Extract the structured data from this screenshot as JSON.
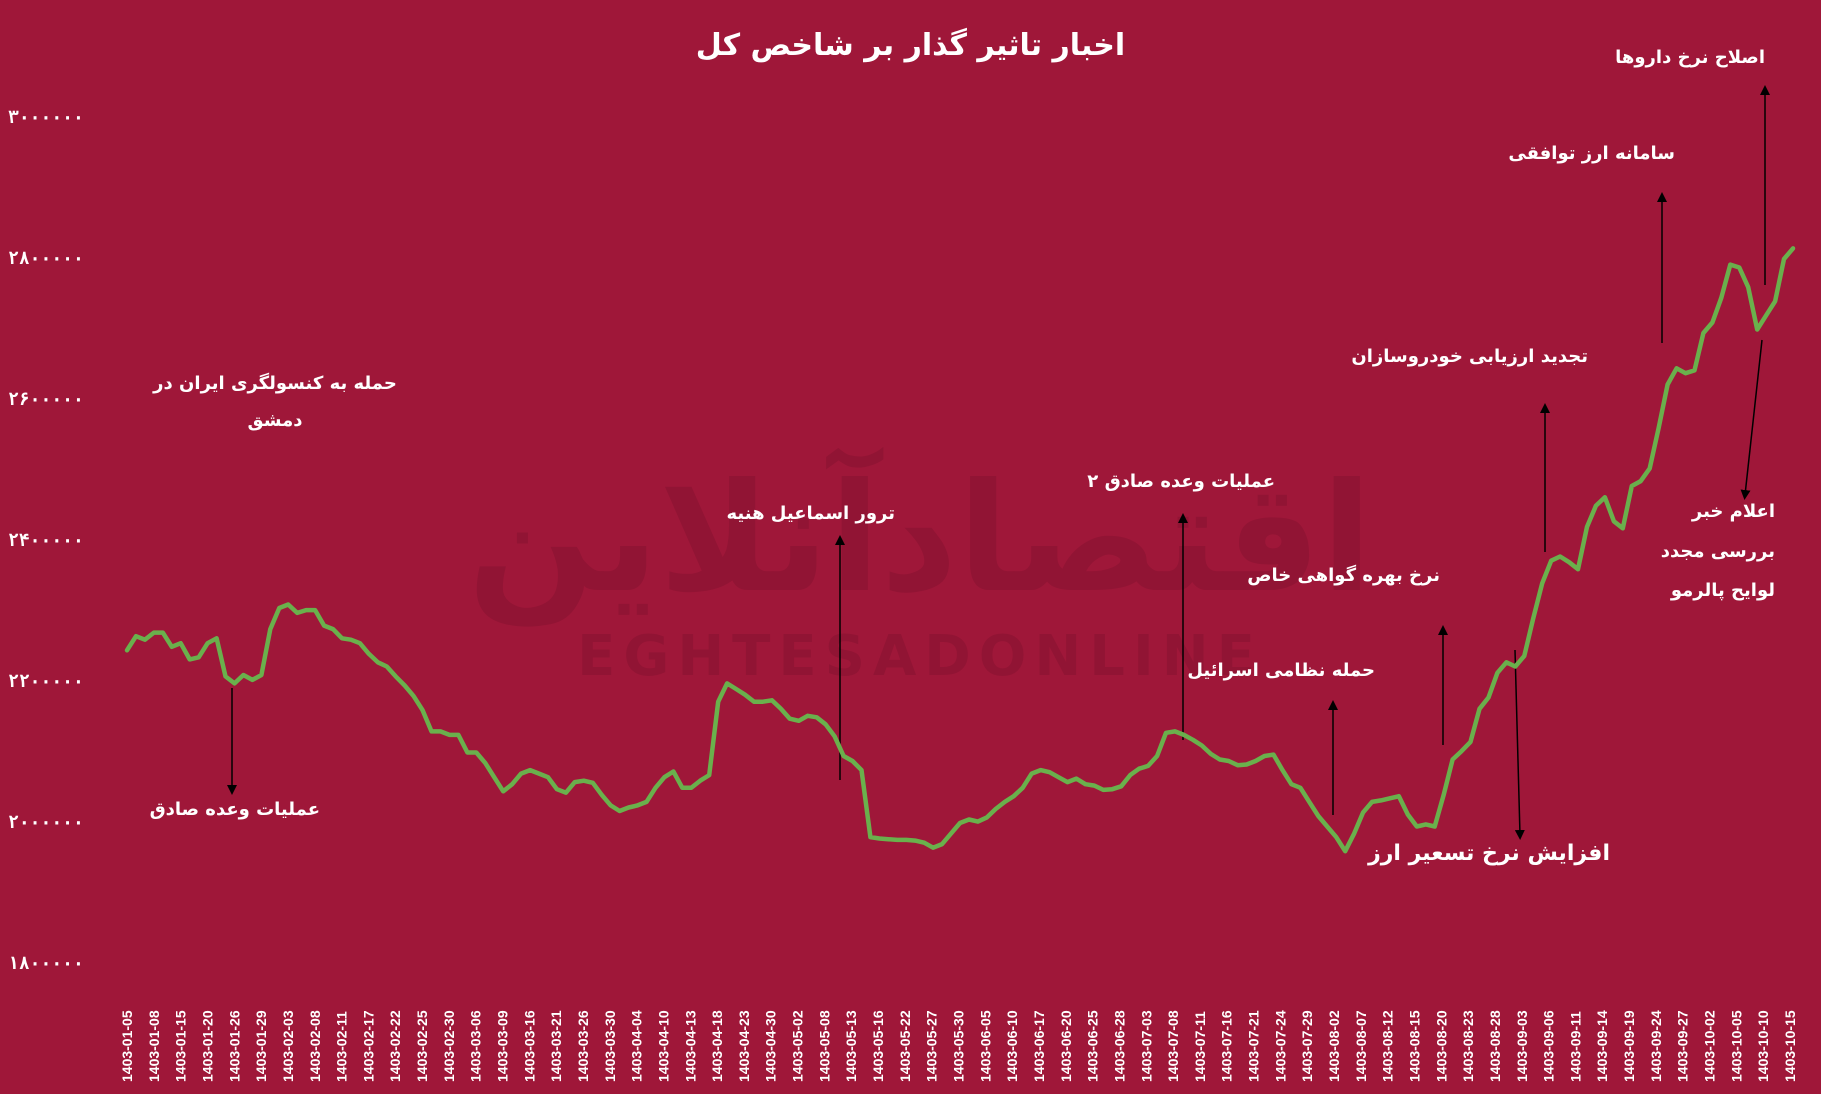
{
  "chart_data": {
    "type": "line",
    "title": "اخبار تاثیر گذار بر شاخص کل",
    "xlabel": "",
    "ylabel": "",
    "ylim": [
      1800000,
      3000000
    ],
    "ytick_labels": [
      "۳۰۰۰۰۰۰",
      "۲۸۰۰۰۰۰",
      "۲۶۰۰۰۰۰",
      "۲۴۰۰۰۰۰",
      "۲۲۰۰۰۰۰",
      "۲۰۰۰۰۰۰",
      "۱۸۰۰۰۰۰"
    ],
    "ytick_values": [
      3000000,
      2800000,
      2600000,
      2400000,
      2200000,
      2000000,
      1800000
    ],
    "x_tick_labels": [
      "1403-01-05",
      "1403-01-08",
      "1403-01-15",
      "1403-01-20",
      "1403-01-26",
      "1403-01-29",
      "1403-02-03",
      "1403-02-08",
      "1403-02-11",
      "1403-02-17",
      "1403-02-22",
      "1403-02-25",
      "1403-02-30",
      "1403-03-06",
      "1403-03-09",
      "1403-03-16",
      "1403-03-21",
      "1403-03-26",
      "1403-03-30",
      "1403-04-04",
      "1403-04-10",
      "1403-04-13",
      "1403-04-18",
      "1403-04-23",
      "1403-04-30",
      "1403-05-02",
      "1403-05-08",
      "1403-05-13",
      "1403-05-16",
      "1403-05-22",
      "1403-05-27",
      "1403-05-30",
      "1403-06-05",
      "1403-06-10",
      "1403-06-17",
      "1403-06-20",
      "1403-06-25",
      "1403-06-28",
      "1403-07-03",
      "1403-07-08",
      "1403-07-11",
      "1403-07-16",
      "1403-07-21",
      "1403-07-24",
      "1403-07-29",
      "1403-08-02",
      "1403-08-07",
      "1403-08-12",
      "1403-08-15",
      "1403-08-20",
      "1403-08-23",
      "1403-08-28",
      "1403-09-03",
      "1403-09-06",
      "1403-09-11",
      "1403-09-14",
      "1403-09-19",
      "1403-09-24",
      "1403-09-27",
      "1403-10-02",
      "1403-10-05",
      "1403-10-10",
      "1403-10-15"
    ],
    "series_color": "#6ab04c",
    "values": [
      2245000,
      2265000,
      2260000,
      2270000,
      2270000,
      2250000,
      2255000,
      2232000,
      2235000,
      2255000,
      2262000,
      2208000,
      2198000,
      2210000,
      2203000,
      2210000,
      2275000,
      2305000,
      2310000,
      2298000,
      2302000,
      2302000,
      2280000,
      2275000,
      2262000,
      2260000,
      2255000,
      2240000,
      2228000,
      2222000,
      2208000,
      2195000,
      2180000,
      2160000,
      2130000,
      2130000,
      2125000,
      2125000,
      2100000,
      2100000,
      2085000,
      2065000,
      2045000,
      2055000,
      2070000,
      2075000,
      2070000,
      2065000,
      2048000,
      2043000,
      2058000,
      2060000,
      2057000,
      2040000,
      2025000,
      2017000,
      2022000,
      2025000,
      2030000,
      2050000,
      2065000,
      2073000,
      2050000,
      2050000,
      2060000,
      2068000,
      2172000,
      2198000,
      2190000,
      2182000,
      2172000,
      2172000,
      2174000,
      2162000,
      2148000,
      2145000,
      2152000,
      2150000,
      2140000,
      2123000,
      2095000,
      2088000,
      2075000,
      1980000,
      1978000,
      1977000,
      1976000,
      1976000,
      1975000,
      1972000,
      1965000,
      1970000,
      1985000,
      2000000,
      2005000,
      2002000,
      2008000,
      2020000,
      2030000,
      2038000,
      2050000,
      2070000,
      2075000,
      2072000,
      2065000,
      2058000,
      2063000,
      2055000,
      2053000,
      2047000,
      2048000,
      2052000,
      2068000,
      2077000,
      2081000,
      2095000,
      2128000,
      2130000,
      2125000,
      2118000,
      2110000,
      2098000,
      2090000,
      2088000,
      2082000,
      2083000,
      2088000,
      2095000,
      2097000,
      2075000,
      2055000,
      2050000,
      2030000,
      2010000,
      1995000,
      1980000,
      1960000,
      1985000,
      2015000,
      2030000,
      2032000,
      2035000,
      2038000,
      2012000,
      1995000,
      1998000,
      1995000,
      2040000,
      2090000,
      2102000,
      2115000,
      2162000,
      2178000,
      2213000,
      2228000,
      2222000,
      2237000,
      2290000,
      2340000,
      2372000,
      2378000,
      2370000,
      2360000,
      2420000,
      2450000,
      2462000,
      2428000,
      2418000,
      2478000,
      2485000,
      2503000,
      2560000,
      2622000,
      2645000,
      2638000,
      2642000,
      2695000,
      2710000,
      2745000,
      2792000,
      2788000,
      2760000,
      2700000,
      2720000,
      2740000,
      2800000,
      2815000
    ]
  },
  "annotations": {
    "a1_l1": "حمله به کنسولگری ایران در",
    "a1_l2": "دمشق",
    "a2": "عملیات وعده صادق",
    "a3": "ترور اسماعیل هنیه",
    "a4": "عملیات وعده صادق ۲",
    "a5": "نرخ بهره گواهی خاص",
    "a6": "حمله نظامی اسرائیل",
    "a7": "افزایش نرخ تسعیر ارز",
    "a8": "تجدید ارزیابی خودروسازان",
    "a9": "سامانه ارز توافقی",
    "a10": "اصلاح نرخ داروها",
    "a11_l1": "اعلام خبر",
    "a11_l2": "بررسی مجدد",
    "a11_l3": "لوایح پالرمو"
  },
  "watermark": {
    "text_fa": "اقتصادآنلاین",
    "text_en": "EGHTESADONLINE"
  }
}
